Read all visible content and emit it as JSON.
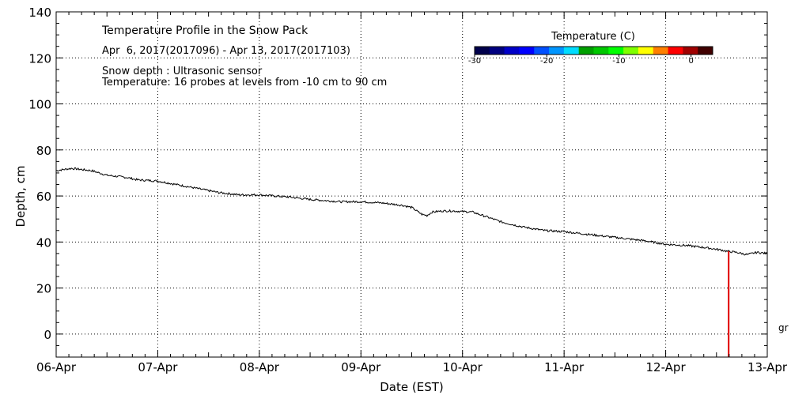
{
  "chart_data": {
    "type": "line",
    "title": "Temperature Profile in the Snow Pack",
    "subtitle": "Apr  6, 2017(2017096) - Apr 13, 2017(2017103)",
    "annotations": [
      "Snow depth : Ultrasonic sensor",
      "Temperature: 16 probes at levels from -10 cm to 90 cm"
    ],
    "xlabel": "Date (EST)",
    "ylabel": "Depth, cm",
    "x_ticks": [
      "06-Apr",
      "07-Apr",
      "08-Apr",
      "09-Apr",
      "10-Apr",
      "11-Apr",
      "12-Apr",
      "13-Apr"
    ],
    "xlim": [
      0,
      7
    ],
    "ylim": [
      -10,
      140
    ],
    "y_ticks": [
      0,
      20,
      40,
      60,
      80,
      100,
      120,
      140
    ],
    "grid": true,
    "colorbar": {
      "title": "Temperature (C)",
      "ticks": [
        -30,
        -20,
        -10,
        0
      ],
      "range": [
        -30,
        3
      ],
      "colors": [
        "#00004c",
        "#000080",
        "#0000c8",
        "#0000ff",
        "#0050ff",
        "#0096ff",
        "#00dcff",
        "#00a000",
        "#00c800",
        "#00ff00",
        "#80ff00",
        "#ffff00",
        "#ff8000",
        "#ff0000",
        "#a00000",
        "#400000"
      ]
    },
    "series": [
      {
        "color": "#000000",
        "x": [
          0,
          0.15,
          0.35,
          0.5,
          0.7,
          0.8,
          1.0,
          1.3,
          1.6,
          1.8,
          2.0,
          2.3,
          2.5,
          2.8,
          3.0,
          3.2,
          3.4,
          3.5,
          3.6,
          3.65,
          3.7,
          3.8,
          3.9,
          4.1,
          4.2,
          4.3,
          4.4,
          4.6,
          4.8,
          5.0,
          5.2,
          5.4,
          5.6,
          5.8,
          6.0,
          6.2,
          6.4,
          6.55,
          6.6,
          6.7,
          6.8,
          6.9,
          7.0
        ],
        "y": [
          71,
          72,
          71,
          69,
          68,
          67,
          66.5,
          64,
          61.5,
          60.5,
          60.5,
          59.5,
          58.5,
          57.5,
          57.5,
          57,
          56,
          55,
          52,
          51.5,
          53,
          53.5,
          53.5,
          53,
          51.5,
          50,
          48.5,
          46.5,
          45,
          44.5,
          43.5,
          42.5,
          41.5,
          40.5,
          39,
          38.5,
          37.5,
          36.5,
          36,
          35.5,
          34.5,
          35.5,
          35
        ]
      },
      {
        "color": "#e00000",
        "x": [
          6.62,
          6.62
        ],
        "y": [
          36,
          -10
        ]
      }
    ]
  },
  "side_label": "gr"
}
